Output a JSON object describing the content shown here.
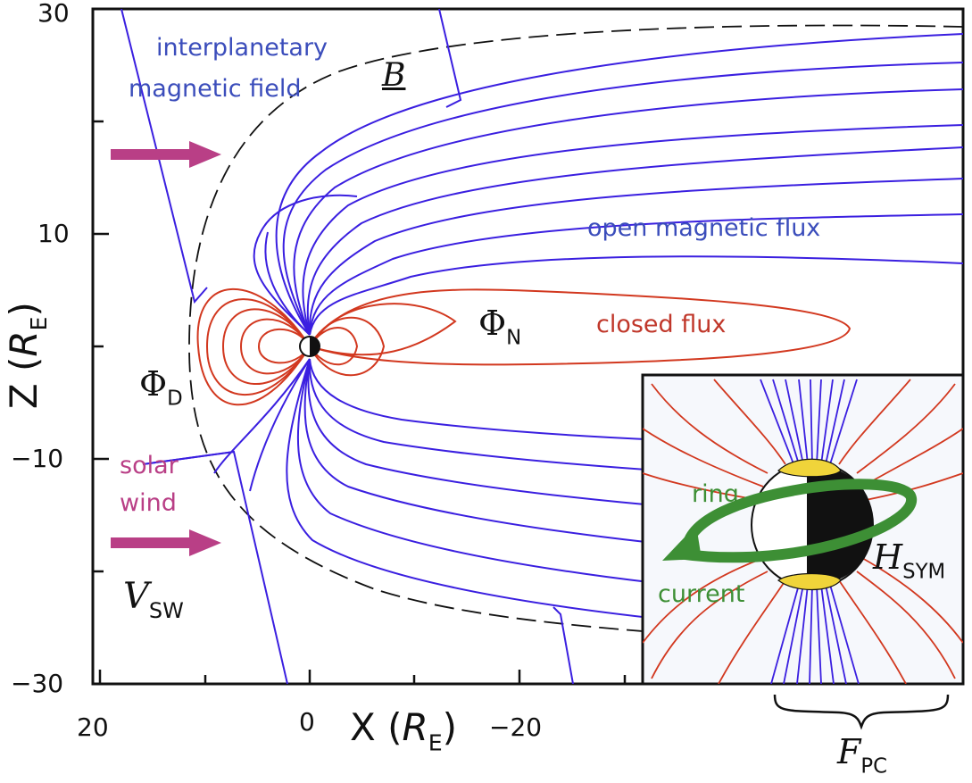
{
  "axes": {
    "y_ticks": [
      "30",
      "10",
      "−10",
      "−30"
    ],
    "x_ticks": [
      "20",
      "0",
      "−20"
    ],
    "x_title": "X (",
    "x_title_R": "R",
    "x_title_sub": "E",
    "x_title_close": ")",
    "y_title": "Z (",
    "y_title_R": "R",
    "y_title_sub": "E",
    "y_title_close": ")"
  },
  "labels": {
    "imf_line1": "interplanetary",
    "imf_line2": "magnetic field",
    "imf_symbol": "B",
    "open_flux": "open magnetic flux",
    "closed_flux": "closed flux",
    "phi_n": "Φ",
    "phi_n_sub": "N",
    "phi_d": "Φ",
    "phi_d_sub": "D",
    "solar_wind_line1": "solar",
    "solar_wind_line2": "wind",
    "vsw": "V",
    "vsw_sub": "SW",
    "ring": "ring",
    "current": "current",
    "hsym": "H",
    "hsym_sub": "SYM",
    "fpc": "F",
    "fpc_sub": "PC"
  },
  "colors": {
    "open_field_lines": "#3a1fe0",
    "closed_field_lines": "#d2381f",
    "magnetopause": "#111111",
    "solar_wind_arrow": "#b93f86",
    "ring_current": "#3d8f35",
    "auroral_oval": "#f0d43a",
    "inset_bg": "#f6f8fc"
  }
}
